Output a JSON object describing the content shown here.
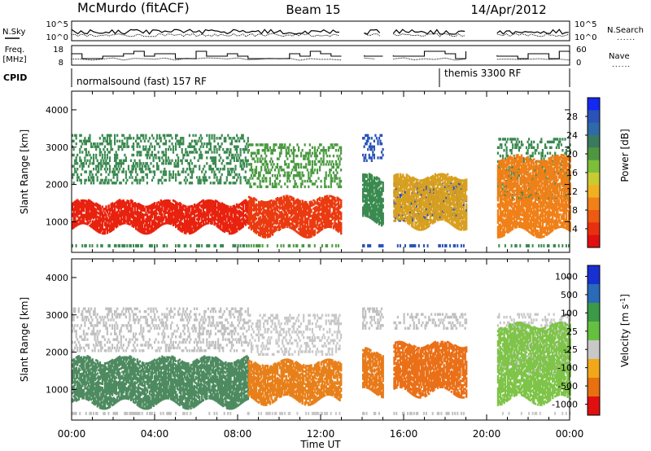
{
  "header": {
    "station": "McMurdo (fitACF)",
    "beam": "Beam 15",
    "date": "14/Apr/2012"
  },
  "top_panels": {
    "nsky_label": "N.Sky",
    "nsearch_label": "N.Search",
    "freq_label_1": "Freq.",
    "freq_label_2": "[MHz]",
    "nave_label": "Nave",
    "cpid_label": "CPID",
    "noise_left_ticks": [
      "10^5",
      "10^0"
    ],
    "noise_right_ticks": [
      "10^5",
      "10^0"
    ],
    "freq_left_ticks": [
      "18",
      "8"
    ],
    "freq_right_ticks": [
      "60",
      "0"
    ],
    "cpid_mode_1": "normalsound (fast) 157 RF",
    "cpid_mode_2": "themis 3300 RF",
    "legend_dots": "......"
  },
  "chart_data": [
    {
      "type": "heatmap",
      "title": "",
      "xlabel": "",
      "ylabel": "Slant Range [km]",
      "xlim": [
        0,
        24
      ],
      "ylim": [
        180,
        4500
      ],
      "x_tick_labels": [
        "00:00",
        "04:00",
        "08:00",
        "12:00",
        "16:00",
        "20:00",
        "00:00"
      ],
      "y_ticks": [
        1000,
        2000,
        3000,
        4000
      ],
      "colorbar": {
        "label": "Power [dB]",
        "ticks": [
          "4",
          "8",
          "12",
          "16",
          "20",
          "24",
          "28"
        ],
        "colors": [
          "#1428f0",
          "#2a52b8",
          "#2f6aa8",
          "#3a7a60",
          "#4f9640",
          "#7dbf3a",
          "#c8cc30",
          "#f0b020",
          "#f08018",
          "#ee5a10",
          "#e83010",
          "#e01010"
        ]
      },
      "regions": [
        {
          "t": [
            0.0,
            8.5
          ],
          "strong": [
            800,
            1500
          ],
          "strong_color": "#e8220e",
          "weak": [
            2000,
            3300
          ],
          "weak_color": "#3a8a50"
        },
        {
          "t": [
            8.5,
            13.0
          ],
          "strong": [
            700,
            1600
          ],
          "strong_color": "#ea3a10",
          "weak": [
            1900,
            3100
          ],
          "weak_color": "#4a9a40"
        },
        {
          "t": [
            14.0,
            15.0
          ],
          "strong": [
            1000,
            2200
          ],
          "strong_color": "#3a8a50",
          "weak": [
            2600,
            3300
          ],
          "weak_color": "#2a52b8"
        },
        {
          "t": [
            15.5,
            19.0
          ],
          "strong": [
            900,
            2200
          ],
          "strong_color": "#d8a020",
          "weak": [
            1000,
            2000
          ],
          "weak_color": "#2a52b8"
        },
        {
          "t": [
            20.5,
            24.0
          ],
          "strong": [
            700,
            2700
          ],
          "strong_color": "#f08018",
          "weak": [
            1600,
            3200
          ],
          "weak_color": "#3a8a50"
        }
      ]
    },
    {
      "type": "heatmap",
      "title": "",
      "xlabel": "Time UT",
      "ylabel": "Slant Range [km]",
      "xlim": [
        0,
        24
      ],
      "ylim": [
        180,
        4500
      ],
      "x_tick_labels": [
        "00:00",
        "04:00",
        "08:00",
        "12:00",
        "16:00",
        "20:00",
        "00:00"
      ],
      "y_ticks": [
        1000,
        2000,
        3000,
        4000
      ],
      "colorbar": {
        "label": "Velocity [m s^-1]",
        "ticks": [
          "1000",
          "500",
          "100",
          "25",
          "-25",
          "-100",
          "-500",
          "-1000"
        ],
        "colors": [
          "#1830d0",
          "#2a6ab8",
          "#3a9a48",
          "#66c040",
          "#c8c8c8",
          "#f0a818",
          "#e87010",
          "#e01010"
        ]
      },
      "regions": [
        {
          "t": [
            0.0,
            8.5
          ],
          "strong": [
            600,
            1800
          ],
          "strong_color": "#4e8a60",
          "weak": [
            2000,
            3200
          ],
          "weak_color": "#c0c0c0"
        },
        {
          "t": [
            8.5,
            13.0
          ],
          "strong": [
            700,
            1700
          ],
          "strong_color": "#e8801a",
          "weak": [
            1900,
            3000
          ],
          "weak_color": "#c8c8c8"
        },
        {
          "t": [
            14.0,
            15.0
          ],
          "strong": [
            900,
            2000
          ],
          "strong_color": "#e87a1a",
          "weak": [
            2600,
            3200
          ],
          "weak_color": "#c0c0c0"
        },
        {
          "t": [
            15.5,
            19.0
          ],
          "strong": [
            900,
            2200
          ],
          "strong_color": "#ea7018",
          "weak": [
            2600,
            3000
          ],
          "weak_color": "#c0c0c0"
        },
        {
          "t": [
            20.5,
            24.0
          ],
          "strong": [
            700,
            2700
          ],
          "strong_color": "#7ec448",
          "weak": [
            1400,
            3000
          ],
          "weak_color": "#c8c8c8"
        }
      ]
    }
  ]
}
